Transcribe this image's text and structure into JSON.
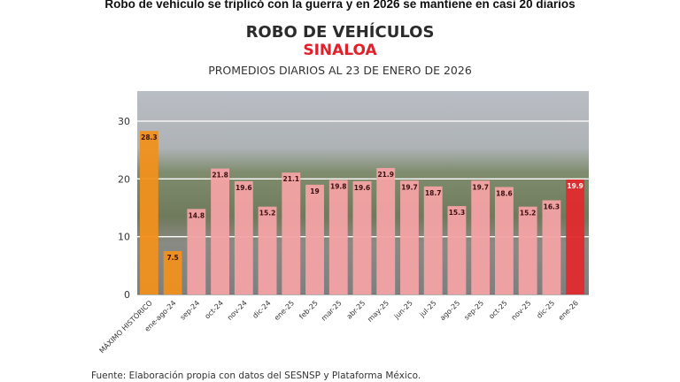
{
  "headline": "Robo de vehículo se triplicó con la guerra y en 2026 se mantiene en casi 20 diarios",
  "source": "Fuente: Elaboración propia con datos del SESNSP y Plataforma México.",
  "chart_data": {
    "type": "bar",
    "title": "ROBO DE VEHÍCULOS",
    "subtitle_red": "SINALOA",
    "subtitle": "PROMEDIOS DIARIOS AL 23 DE ENERO DE 2026",
    "xlabel": "",
    "ylabel": "",
    "ylim": [
      0,
      32
    ],
    "yticks": [
      0,
      10,
      20,
      30
    ],
    "grid": true,
    "categories": [
      "MÁXIMO HISTÓRICO",
      "ene-ago-24",
      "sep-24",
      "oct-24",
      "nov-24",
      "dic-24",
      "ene-25",
      "feb-25",
      "mar-25",
      "abr-25",
      "may-25",
      "jun-25",
      "jul-25",
      "ago-25",
      "sep-25",
      "oct-25",
      "nov-25",
      "dic-25",
      "ene-26"
    ],
    "values": [
      28.3,
      7.5,
      14.8,
      21.8,
      19.6,
      15.2,
      21.1,
      19,
      19.8,
      19.6,
      21.9,
      19.7,
      18.7,
      15.3,
      19.7,
      18.6,
      15.2,
      16.3,
      19.9
    ],
    "bar_colors": [
      "#f0901c",
      "#f0901c",
      "#f3a2a4",
      "#f3a2a4",
      "#f3a2a4",
      "#f3a2a4",
      "#f3a2a4",
      "#f3a2a4",
      "#f3a2a4",
      "#f3a2a4",
      "#f3a2a4",
      "#f3a2a4",
      "#f3a2a4",
      "#f3a2a4",
      "#f3a2a4",
      "#f3a2a4",
      "#f3a2a4",
      "#f3a2a4",
      "#e02a2e"
    ]
  }
}
